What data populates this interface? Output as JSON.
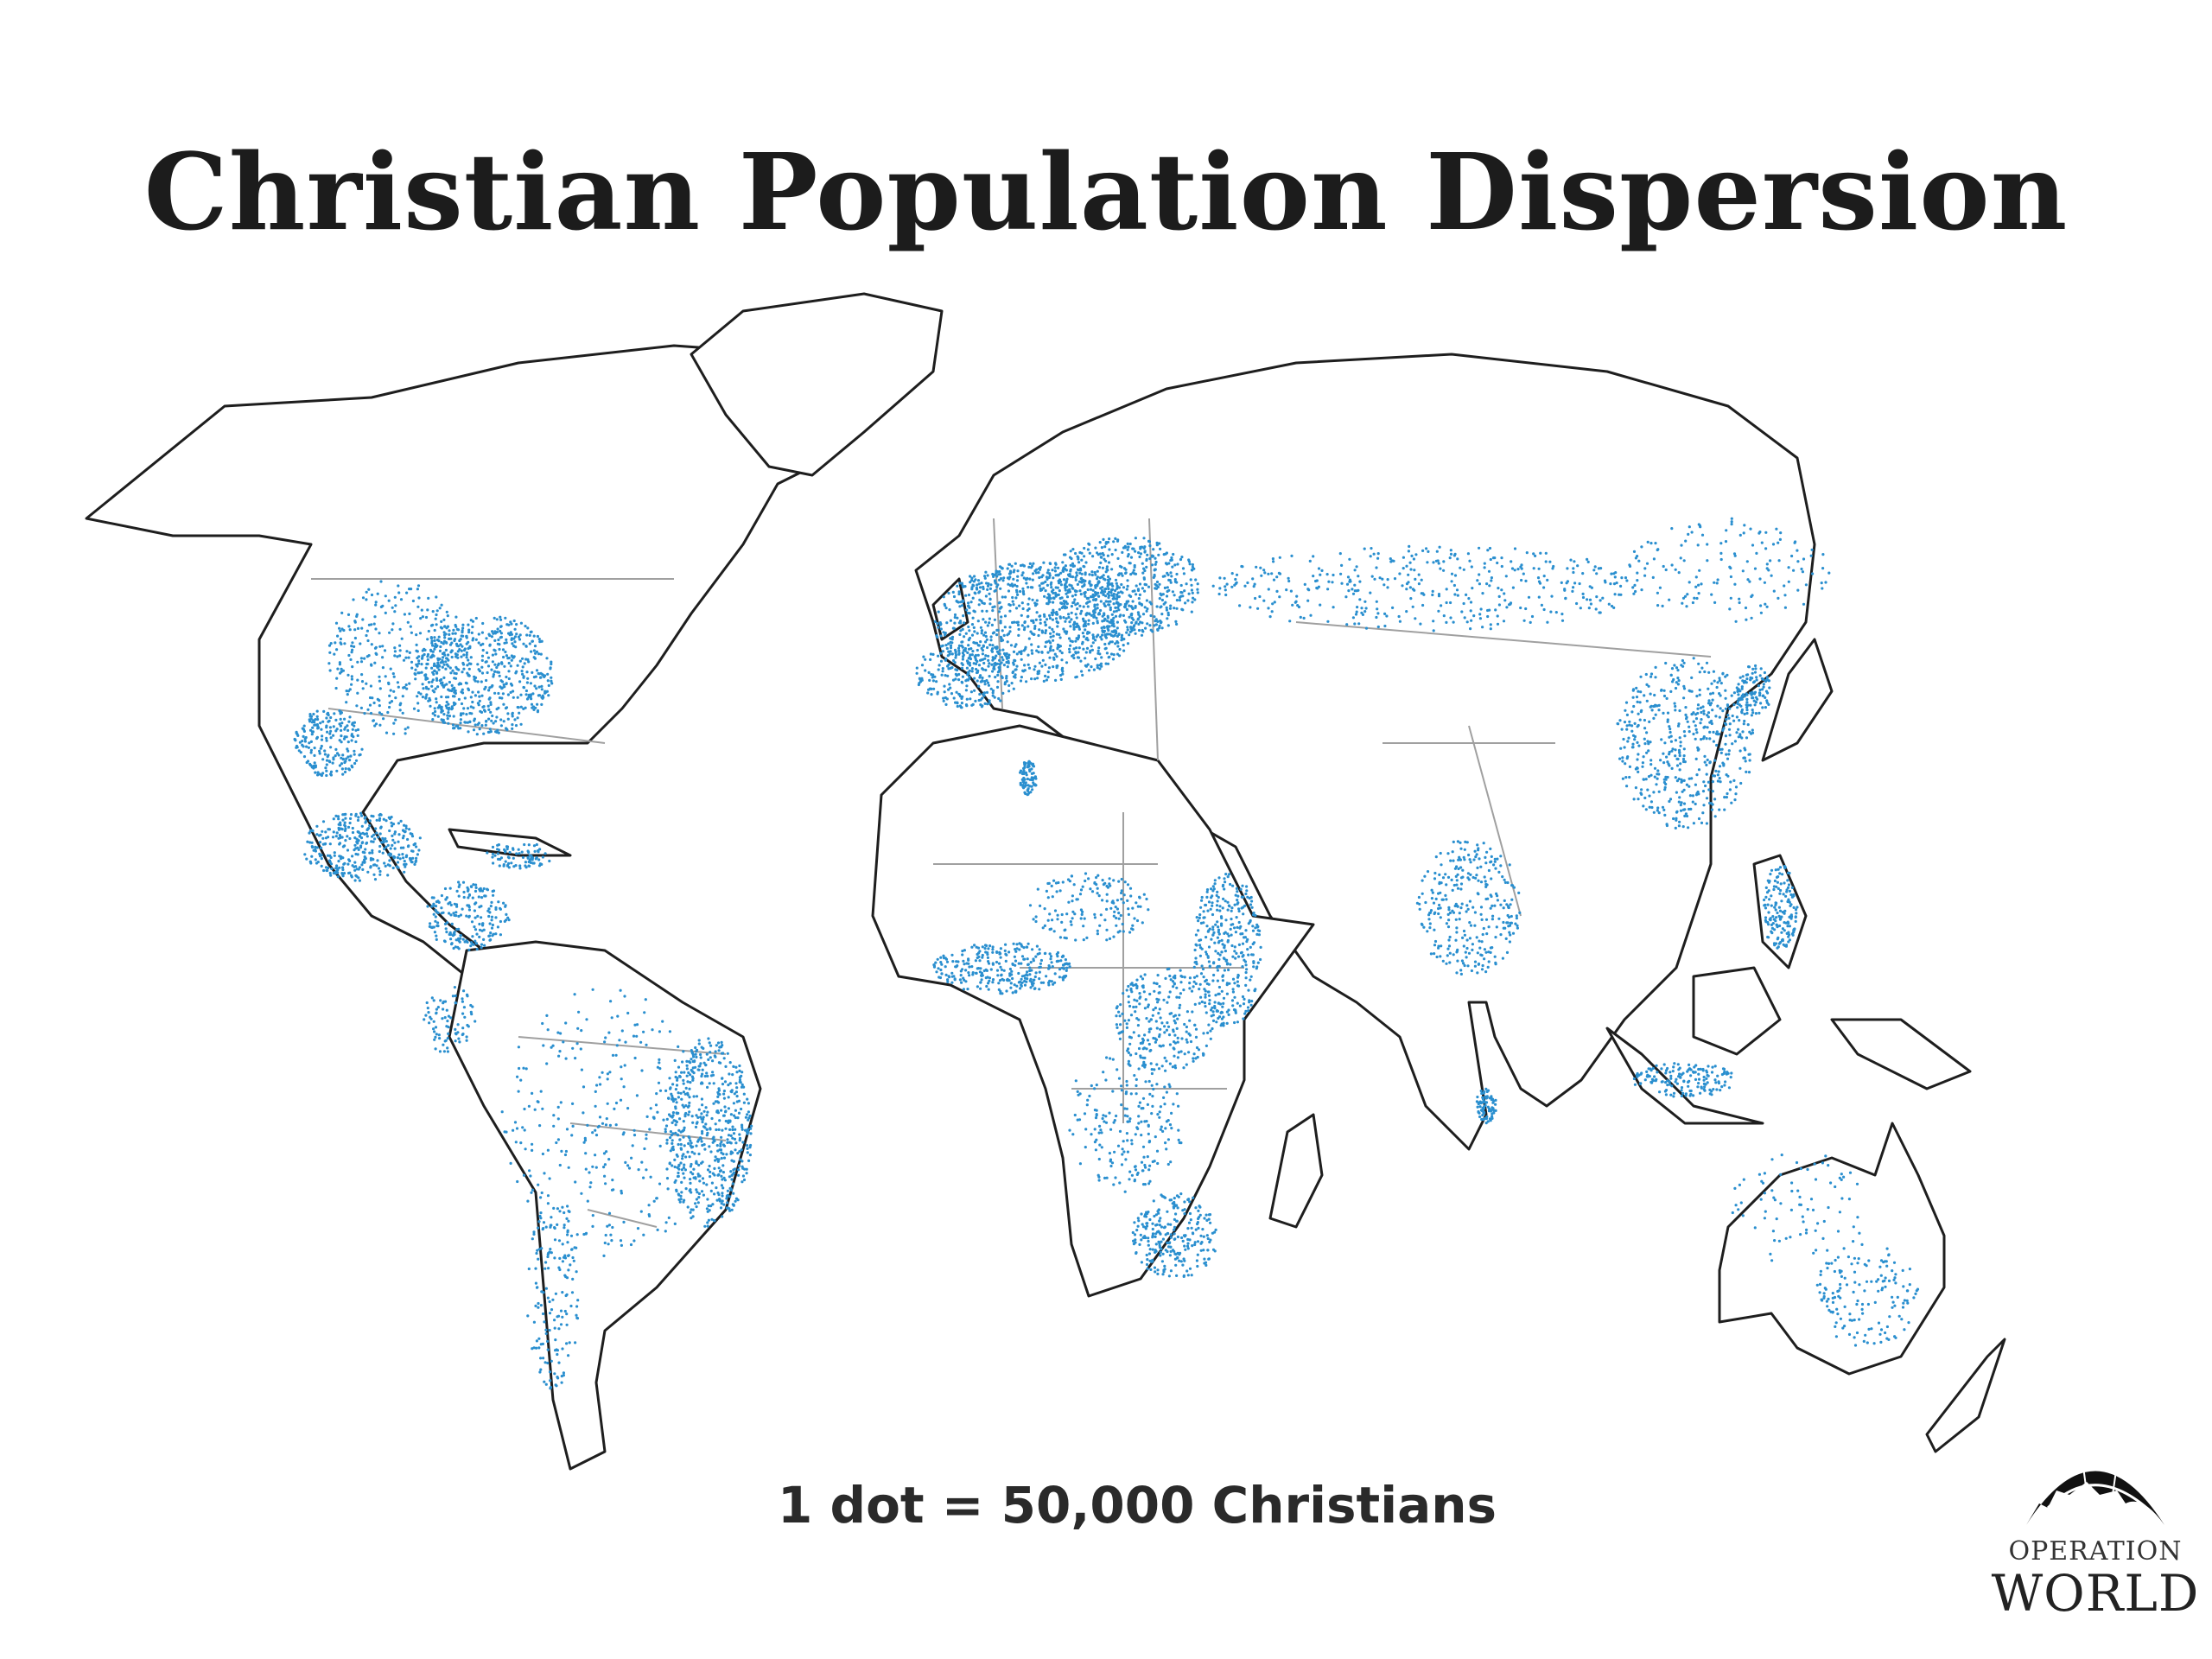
{
  "title": "Christian Population Dispersion",
  "legend": {
    "caption": "1 dot = 50,000 Christians"
  },
  "logo": {
    "line1": "OPERATION",
    "line2": "WORLD",
    "icon": "globe-icon"
  },
  "map": {
    "type": "dot-density world map",
    "dot_color": "#2a8fcf",
    "outline_color": "#222222",
    "border_color": "#9a9a9a",
    "dense_regions": [
      "Europe",
      "Eastern United States",
      "Mexico and Central America",
      "Caribbean",
      "Eastern Brazil",
      "West Africa coast",
      "East Africa",
      "Southern Africa",
      "Egypt (Nile)",
      "Southern India",
      "Eastern China",
      "Korea",
      "Philippines",
      "Indonesia (Java)",
      "Eastern Australia"
    ]
  }
}
